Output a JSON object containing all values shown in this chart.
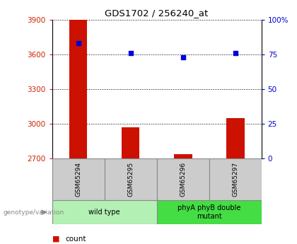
{
  "title": "GDS1702 / 256240_at",
  "samples": [
    "GSM65294",
    "GSM65295",
    "GSM65296",
    "GSM65297"
  ],
  "counts": [
    3900,
    2970,
    2740,
    3050
  ],
  "percentile_ranks": [
    83,
    76,
    73,
    76
  ],
  "ylim_left": [
    2700,
    3900
  ],
  "ylim_right": [
    0,
    100
  ],
  "yticks_left": [
    2700,
    3000,
    3300,
    3600,
    3900
  ],
  "yticks_right": [
    0,
    25,
    50,
    75,
    100
  ],
  "ytick_labels_right": [
    "0",
    "25",
    "50",
    "75",
    "100%"
  ],
  "groups": [
    {
      "label": "wild type",
      "samples": [
        0,
        1
      ],
      "color": "#b3f0b3"
    },
    {
      "label": "phyA phyB double\nmutant",
      "samples": [
        2,
        3
      ],
      "color": "#44dd44"
    }
  ],
  "bar_color": "#cc1100",
  "dot_color": "#0000dd",
  "bar_width": 0.35,
  "left_tick_color": "#cc2200",
  "right_tick_color": "#0000cc",
  "bg_label": "#cccccc",
  "legend_count_color": "#cc1100",
  "legend_dot_color": "#0000dd"
}
